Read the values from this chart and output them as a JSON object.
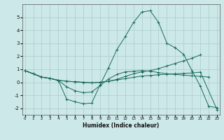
{
  "xlabel": "Humidex (Indice chaleur)",
  "x": [
    0,
    1,
    2,
    3,
    4,
    5,
    6,
    7,
    8,
    9,
    10,
    11,
    12,
    13,
    14,
    15,
    16,
    17,
    18,
    19,
    20,
    21,
    22,
    23
  ],
  "line_peak": [
    0.9,
    0.65,
    0.4,
    0.3,
    0.15,
    -1.3,
    -1.5,
    -1.65,
    -1.6,
    -0.2,
    1.1,
    2.5,
    3.5,
    4.6,
    5.4,
    5.5,
    4.6,
    3.0,
    2.65,
    2.15,
    0.9,
    -0.3,
    -1.85,
    -1.95
  ],
  "line_low": [
    0.9,
    0.65,
    0.4,
    0.3,
    0.15,
    -0.35,
    -0.65,
    -0.8,
    -0.75,
    -0.25,
    0.25,
    0.6,
    0.8,
    0.85,
    0.9,
    0.85,
    0.75,
    0.65,
    0.6,
    0.55,
    0.5,
    0.45,
    0.4,
    null
  ],
  "line_rise": [
    0.9,
    0.65,
    0.4,
    0.3,
    0.15,
    0.08,
    0.04,
    0.0,
    -0.04,
    0.0,
    0.08,
    0.22,
    0.45,
    0.65,
    0.8,
    0.9,
    1.05,
    1.25,
    1.45,
    1.65,
    1.85,
    2.1,
    null,
    null
  ],
  "line_flat": [
    0.9,
    0.65,
    0.4,
    0.3,
    0.15,
    0.08,
    0.04,
    0.0,
    -0.04,
    0.0,
    0.08,
    0.18,
    0.28,
    0.38,
    0.48,
    0.52,
    0.58,
    0.62,
    0.65,
    0.68,
    0.72,
    0.78,
    null,
    -2.1
  ],
  "color": "#1a6b5a",
  "bg_color": "#cce8e8",
  "grid_color": "#aacccc",
  "ylim": [
    -2.5,
    6.0
  ],
  "xlim": [
    -0.3,
    23.3
  ],
  "yticks": [
    -2,
    -1,
    0,
    1,
    2,
    3,
    4,
    5
  ],
  "xticks": [
    0,
    1,
    2,
    3,
    4,
    5,
    6,
    7,
    8,
    9,
    10,
    11,
    12,
    13,
    14,
    15,
    16,
    17,
    18,
    19,
    20,
    21,
    22,
    23
  ]
}
